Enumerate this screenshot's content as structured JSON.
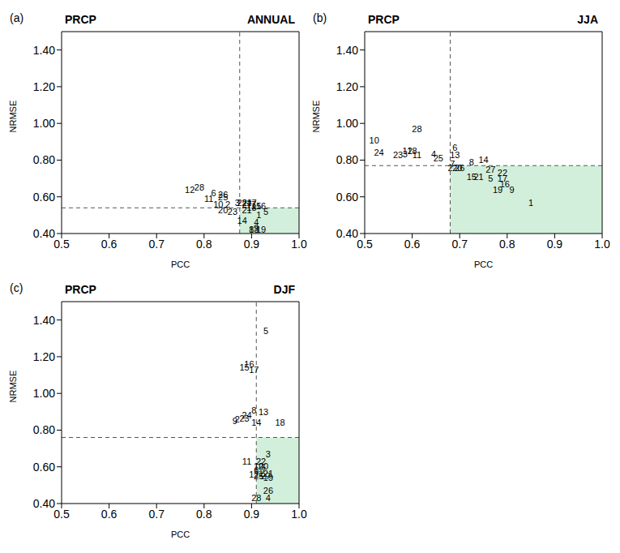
{
  "chart_data": [
    {
      "type": "scatter",
      "panel_label": "(a)",
      "title": "PRCP",
      "subtitle": "ANNUAL",
      "x_label": "PCC",
      "y_label": "NRMSE",
      "xlim": [
        0.5,
        1.0
      ],
      "xticks": [
        0.5,
        0.6,
        0.7,
        0.8,
        0.9,
        {
          "value": 1.0,
          "label": "1.0"
        }
      ],
      "ylim": [
        0.4,
        1.5
      ],
      "yticks": [
        {
          "value": 0.4,
          "label": "0.40"
        },
        {
          "value": 0.6,
          "label": "0.60"
        },
        {
          "value": 0.8,
          "label": "0.80"
        },
        {
          "value": 1.0,
          "label": "1.00"
        },
        {
          "value": 1.2,
          "label": "1.20"
        },
        {
          "value": 1.4,
          "label": "1.40"
        }
      ],
      "threshold_pcc": 0.875,
      "threshold_nrmse": 0.54,
      "color": "#d2efdc",
      "point_labels": [
        "12",
        "28",
        "6",
        "26",
        "25",
        "11",
        "10",
        "2",
        "20",
        "23",
        "3",
        "22",
        "27",
        "7",
        "15",
        "16",
        "5",
        "24",
        "1",
        "14",
        "4",
        "8",
        "9",
        "13",
        "18",
        "21",
        "17",
        "19"
      ],
      "x": [
        0.77,
        0.79,
        0.82,
        0.84,
        0.84,
        0.81,
        0.83,
        0.85,
        0.84,
        0.86,
        0.87,
        0.88,
        0.89,
        0.905,
        0.91,
        0.92,
        0.93,
        0.89,
        0.915,
        0.88,
        0.91,
        0.9,
        0.91,
        0.905,
        0.9,
        0.89,
        0.9,
        0.92
      ],
      "values": [
        0.64,
        0.65,
        0.62,
        0.61,
        0.6,
        0.59,
        0.56,
        0.56,
        0.53,
        0.52,
        0.57,
        0.57,
        0.56,
        0.56,
        0.55,
        0.55,
        0.52,
        0.57,
        0.5,
        0.47,
        0.46,
        0.42,
        0.43,
        0.42,
        0.54,
        0.53,
        0.57,
        0.42
      ]
    },
    {
      "type": "scatter",
      "panel_label": "(b)",
      "title": "PRCP",
      "subtitle": "JJA",
      "x_label": "PCC",
      "y_label": "NRMSE",
      "xlim": [
        0.5,
        1.0
      ],
      "xticks": [
        0.5,
        0.6,
        0.7,
        0.8,
        0.9,
        {
          "value": 1.0,
          "label": "1.0"
        }
      ],
      "ylim": [
        0.4,
        1.5
      ],
      "yticks": [
        {
          "value": 0.4,
          "label": "0.40"
        },
        {
          "value": 0.6,
          "label": "0.60"
        },
        {
          "value": 0.8,
          "label": "0.80"
        },
        {
          "value": 1.0,
          "label": "1.00"
        },
        {
          "value": 1.2,
          "label": "1.20"
        },
        {
          "value": 1.4,
          "label": "1.40"
        }
      ],
      "threshold_pcc": 0.68,
      "threshold_nrmse": 0.77,
      "color": "#d2efdc",
      "point_labels": [
        "10",
        "28",
        "24",
        "23",
        "3",
        "12",
        "18",
        "11",
        "4",
        "25",
        "6",
        "13",
        "7",
        "2",
        "20",
        "26",
        "19",
        "8",
        "14",
        "27",
        "22",
        "15",
        "21",
        "5",
        "17",
        "16",
        "9",
        "1"
      ],
      "x": [
        0.52,
        0.61,
        0.53,
        0.57,
        0.585,
        0.59,
        0.6,
        0.61,
        0.645,
        0.655,
        0.69,
        0.69,
        0.685,
        0.68,
        0.695,
        0.7,
        0.78,
        0.725,
        0.75,
        0.765,
        0.79,
        0.725,
        0.74,
        0.765,
        0.79,
        0.795,
        0.81,
        0.85
      ],
      "values": [
        0.91,
        0.97,
        0.84,
        0.83,
        0.835,
        0.85,
        0.85,
        0.83,
        0.835,
        0.81,
        0.87,
        0.83,
        0.78,
        0.76,
        0.76,
        0.76,
        0.64,
        0.79,
        0.8,
        0.75,
        0.73,
        0.71,
        0.71,
        0.7,
        0.7,
        0.67,
        0.64,
        0.57
      ]
    },
    {
      "type": "scatter",
      "panel_label": "(c)",
      "title": "PRCP",
      "subtitle": "DJF",
      "x_label": "PCC",
      "y_label": "NRMSE",
      "xlim": [
        0.5,
        1.0
      ],
      "xticks": [
        0.5,
        0.6,
        0.7,
        0.8,
        0.9,
        {
          "value": 1.0,
          "label": "1.0"
        }
      ],
      "ylim": [
        0.4,
        1.5
      ],
      "yticks": [
        {
          "value": 0.4,
          "label": "0.40"
        },
        {
          "value": 0.6,
          "label": "0.60"
        },
        {
          "value": 0.8,
          "label": "0.80"
        },
        {
          "value": 1.0,
          "label": "1.00"
        },
        {
          "value": 1.2,
          "label": "1.20"
        },
        {
          "value": 1.4,
          "label": "1.40"
        }
      ],
      "threshold_pcc": 0.91,
      "threshold_nrmse": 0.76,
      "color": "#d2efdc",
      "point_labels": [
        "5",
        "16",
        "15",
        "17",
        "8",
        "13",
        "24",
        "2",
        "23",
        "9",
        "14",
        "18",
        "3",
        "11",
        "22",
        "10",
        "20",
        "6",
        "7",
        "12",
        "1",
        "21",
        "27",
        "25",
        "19",
        "26",
        "28",
        "4"
      ],
      "x": [
        0.93,
        0.895,
        0.885,
        0.905,
        0.905,
        0.925,
        0.89,
        0.87,
        0.885,
        0.865,
        0.91,
        0.96,
        0.935,
        0.89,
        0.92,
        0.915,
        0.925,
        0.91,
        0.925,
        0.905,
        0.92,
        0.935,
        0.93,
        0.915,
        0.935,
        0.935,
        0.91,
        0.935
      ],
      "values": [
        1.34,
        1.16,
        1.14,
        1.13,
        0.91,
        0.9,
        0.88,
        0.86,
        0.865,
        0.85,
        0.84,
        0.84,
        0.67,
        0.63,
        0.63,
        0.605,
        0.605,
        0.58,
        0.58,
        0.56,
        0.565,
        0.565,
        0.55,
        0.55,
        0.54,
        0.47,
        0.43,
        0.43
      ]
    }
  ]
}
